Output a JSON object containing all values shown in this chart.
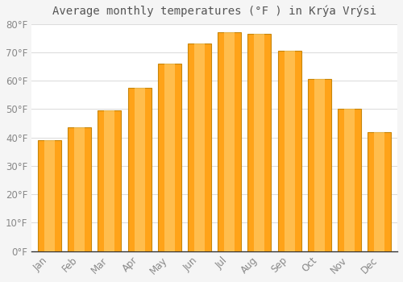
{
  "title": "Average monthly temperatures (°F ) in Krýa Vrýsi",
  "months": [
    "Jan",
    "Feb",
    "Mar",
    "Apr",
    "May",
    "Jun",
    "Jul",
    "Aug",
    "Sep",
    "Oct",
    "Nov",
    "Dec"
  ],
  "values": [
    39,
    43.5,
    49.5,
    57.5,
    66,
    73,
    77,
    76.5,
    70.5,
    60.5,
    50,
    42
  ],
  "bar_color": "#FFA319",
  "bar_edge_color": "#C8860A",
  "background_color": "#F5F5F5",
  "plot_bg_color": "#FFFFFF",
  "grid_color": "#DDDDDD",
  "text_color": "#888888",
  "title_color": "#555555",
  "ylim": [
    0,
    80
  ],
  "yticks": [
    0,
    10,
    20,
    30,
    40,
    50,
    60,
    70,
    80
  ],
  "title_fontsize": 10,
  "tick_fontsize": 8.5,
  "bar_width": 0.78
}
